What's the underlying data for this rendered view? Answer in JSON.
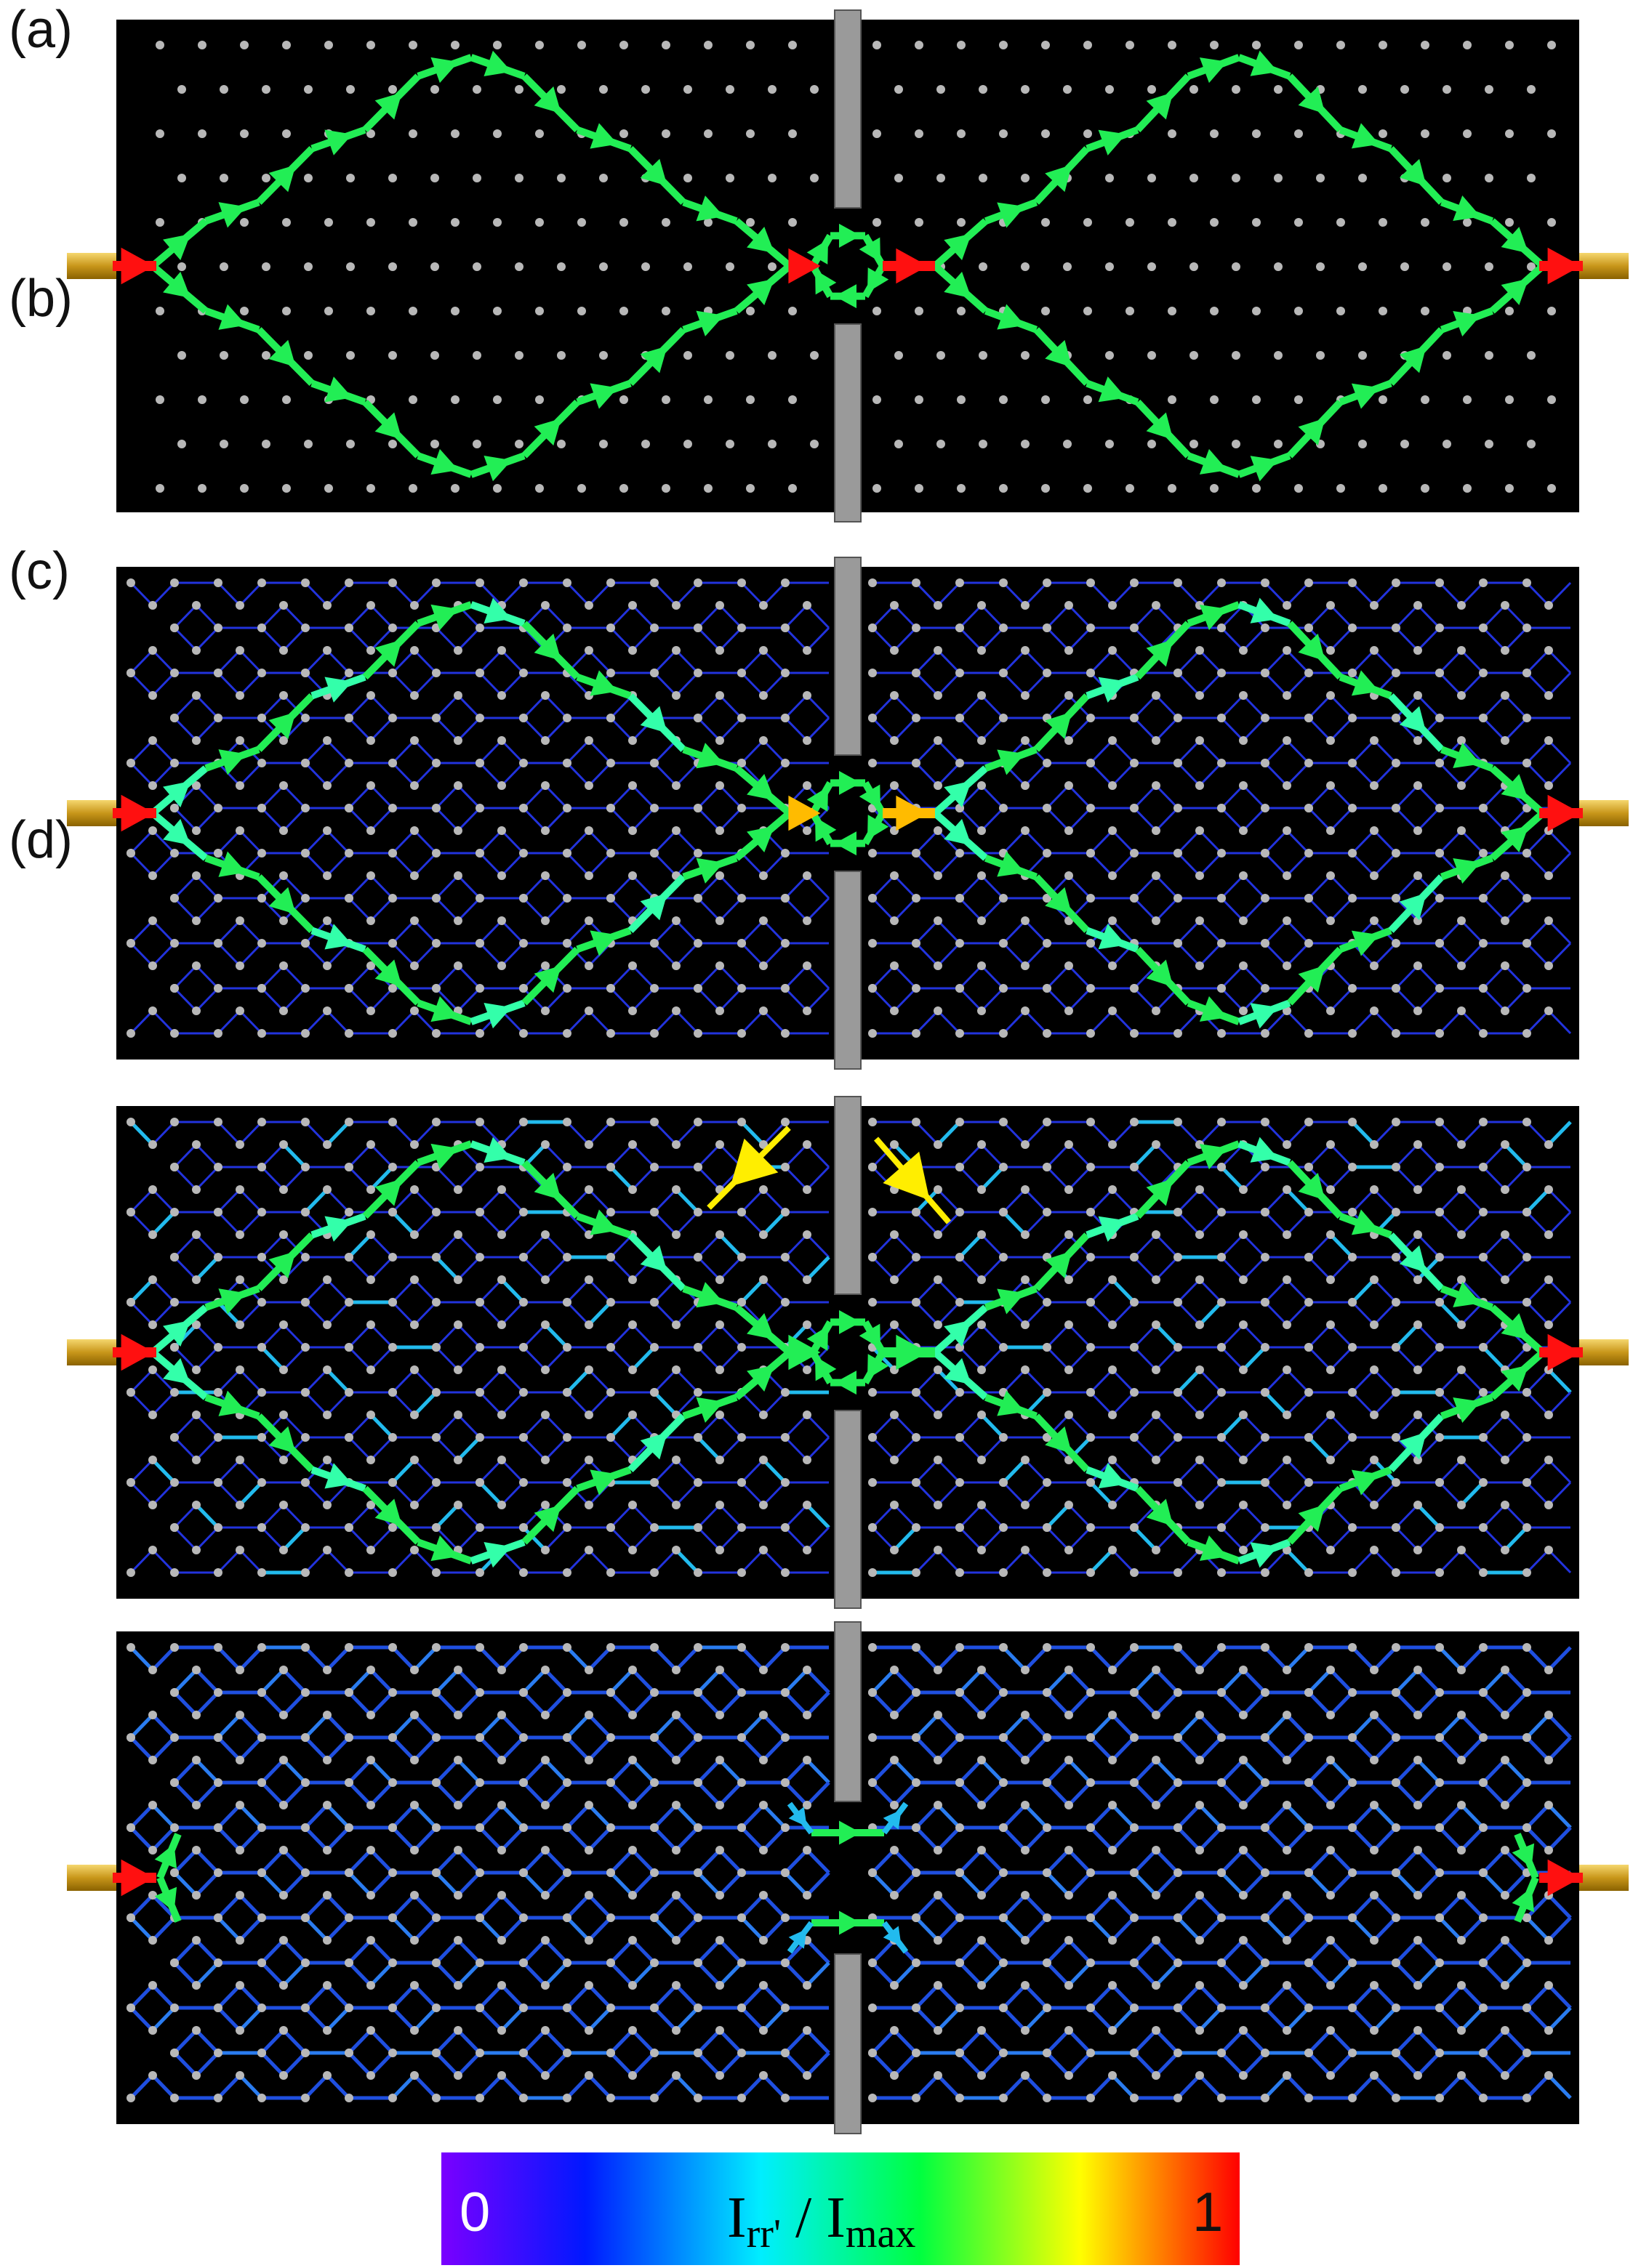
{
  "panels": [
    {
      "id": "a",
      "label": "(a)",
      "lattice": "dots",
      "paths": "diamond",
      "highlight": "red"
    },
    {
      "id": "b",
      "label": "(b)",
      "lattice": "honeycomb",
      "paths": "diamond",
      "highlight": "orange"
    },
    {
      "id": "c",
      "label": "(c)",
      "lattice": "honeycomb",
      "paths": "diamond",
      "highlight": "green",
      "annotations": [
        "yellow-arrow-left",
        "yellow-arrow-right"
      ]
    },
    {
      "id": "d",
      "label": "(d)",
      "lattice": "honeycomb",
      "paths": "spread",
      "highlight": "green"
    }
  ],
  "colorbar": {
    "min_label": "0",
    "max_label": "1",
    "title_main": "I",
    "title_sub1": "rr'",
    "title_sep": " / I",
    "title_sub2": "max"
  },
  "colors": {
    "background": "#000000",
    "lead": "#d4a017",
    "barrier": "#9a9a9a",
    "site": "#b8b8b8",
    "path_green": "#22ee55",
    "weak_blue": "#2233dd",
    "mid_cyan": "#22bbee",
    "red": "#ff1010",
    "orange": "#ffbb00",
    "yellow": "#ffee00"
  }
}
